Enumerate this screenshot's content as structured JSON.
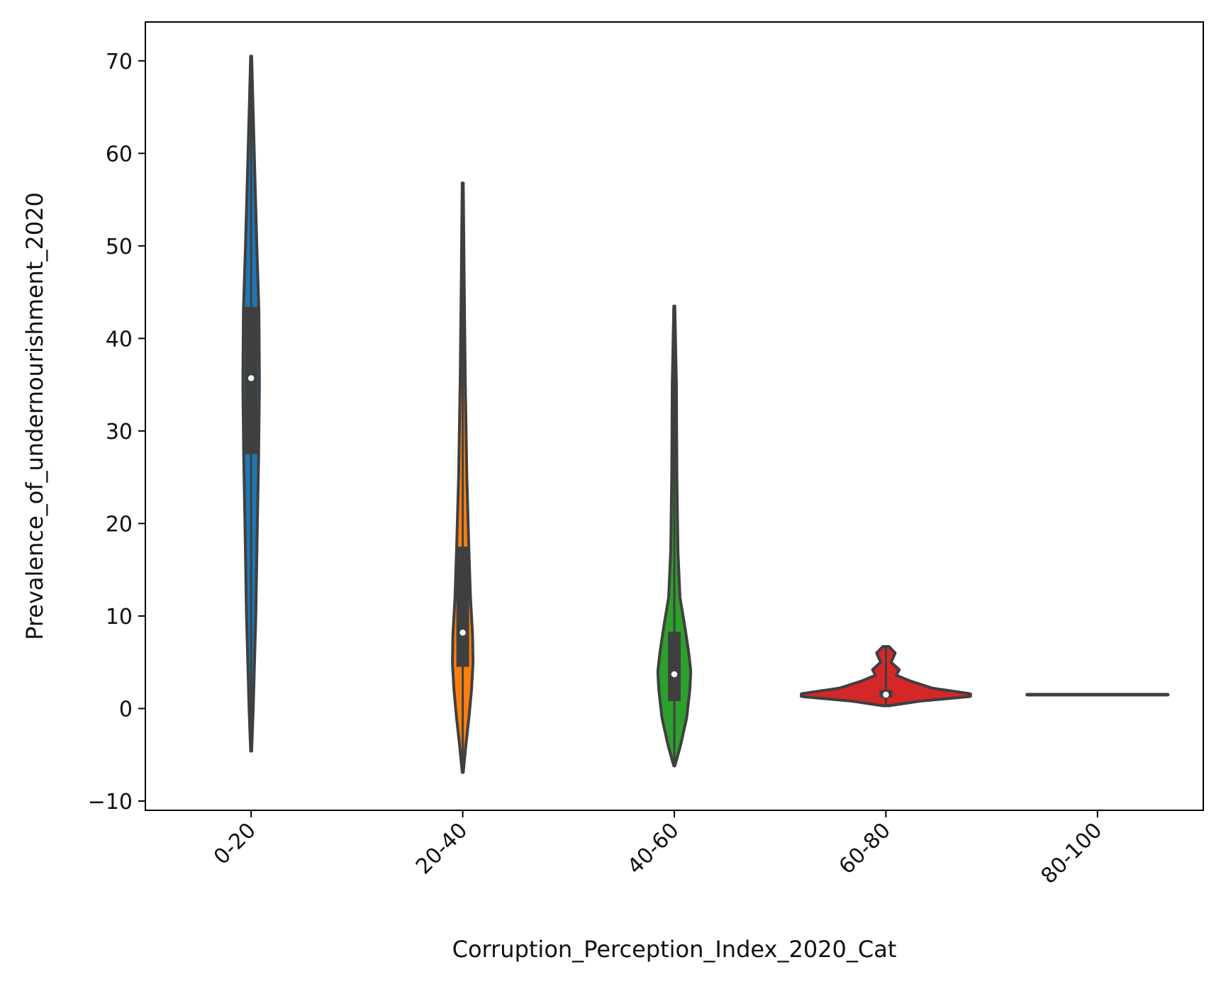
{
  "chart_data": {
    "type": "violin",
    "xlabel": "Corruption_Perception_Index_2020_Cat",
    "ylabel": "Prevalence_of_undernourishment_2020",
    "categories": [
      "0-20",
      "20-40",
      "40-60",
      "60-80",
      "80-100"
    ],
    "ylim": [
      -11,
      74.2
    ],
    "yticks": [
      -10,
      0,
      10,
      20,
      30,
      40,
      50,
      60,
      70
    ],
    "ytick_labels": [
      "−10",
      "0",
      "10",
      "20",
      "30",
      "40",
      "50",
      "60",
      "70"
    ],
    "grid": false,
    "legend": "none",
    "violins": [
      {
        "category": "0-20",
        "color": "#1f77b4",
        "median": 35.7,
        "q1": 27.5,
        "q3": 43.4,
        "whisker_low": -4.6,
        "whisker_high": 70.5,
        "density": [
          [
            -4.6,
            0.05
          ],
          [
            0,
            0.2
          ],
          [
            10,
            0.45
          ],
          [
            20,
            0.6
          ],
          [
            27,
            0.72
          ],
          [
            35,
            0.8
          ],
          [
            43,
            0.75
          ],
          [
            50,
            0.55
          ],
          [
            58,
            0.35
          ],
          [
            65,
            0.18
          ],
          [
            70.5,
            0.05
          ]
        ]
      },
      {
        "category": "20-40",
        "color": "#ff7f0e",
        "median": 8.2,
        "q1": 4.5,
        "q3": 17.5,
        "whisker_low": -6.9,
        "whisker_high": 56.8,
        "density": [
          [
            -6.9,
            0.05
          ],
          [
            -4,
            0.3
          ],
          [
            -1,
            0.6
          ],
          [
            2,
            0.85
          ],
          [
            5,
            1.0
          ],
          [
            8,
            0.95
          ],
          [
            12,
            0.75
          ],
          [
            17,
            0.6
          ],
          [
            25,
            0.4
          ],
          [
            35,
            0.25
          ],
          [
            45,
            0.15
          ],
          [
            56.8,
            0.05
          ]
        ]
      },
      {
        "category": "40-60",
        "color": "#2ca02c",
        "median": 3.7,
        "q1": 0.8,
        "q3": 8.3,
        "whisker_low": -6.2,
        "whisker_high": 43.5,
        "density": [
          [
            -6.2,
            0.05
          ],
          [
            -4,
            0.6
          ],
          [
            -1,
            1.2
          ],
          [
            2,
            1.5
          ],
          [
            4,
            1.6
          ],
          [
            6,
            1.4
          ],
          [
            9,
            1.0
          ],
          [
            12,
            0.55
          ],
          [
            17,
            0.35
          ],
          [
            25,
            0.25
          ],
          [
            35,
            0.2
          ],
          [
            43.5,
            0.05
          ]
        ]
      },
      {
        "category": "60-80",
        "color": "#d62728",
        "median": 1.5,
        "q1": 1.2,
        "q3": 2.0,
        "whisker_low": 0.3,
        "whisker_high": 6.7,
        "density": [
          [
            0.3,
            0.3
          ],
          [
            0.8,
            3.3
          ],
          [
            1.3,
            8.2
          ],
          [
            1.6,
            8.2
          ],
          [
            2.2,
            4.5
          ],
          [
            3,
            2.3
          ],
          [
            3.6,
            1.0
          ],
          [
            4.2,
            1.3
          ],
          [
            5,
            0.5
          ],
          [
            6,
            0.9
          ],
          [
            6.7,
            0.3
          ]
        ]
      },
      {
        "category": "80-100",
        "color": "#9467bd",
        "median": 1.5,
        "q1": 1.5,
        "q3": 1.5,
        "whisker_low": 1.5,
        "whisker_high": 1.5,
        "density": []
      }
    ]
  }
}
